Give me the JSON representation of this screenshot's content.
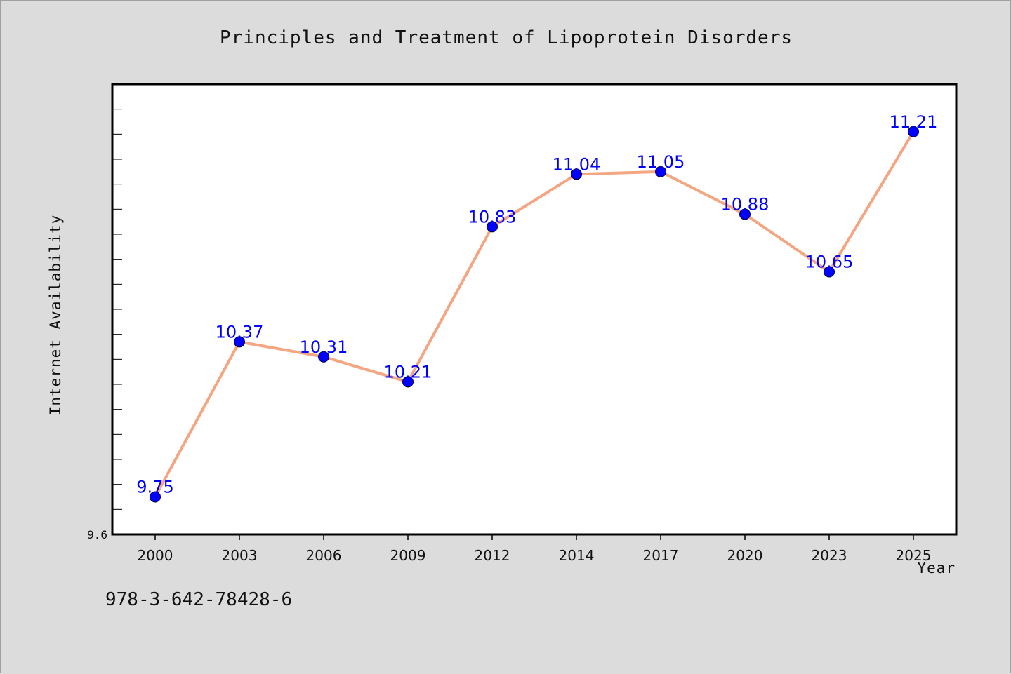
{
  "colors": {
    "background": "#dcdcdc",
    "plot_background": "#ffffff",
    "line": "#f4a582",
    "marker": "#0000ff",
    "data_label": "#0000ff"
  },
  "isbn": "978-3-642-78428-6",
  "chart_data": {
    "type": "line",
    "title": "Principles and Treatment of Lipoprotein Disorders",
    "xlabel": "Year",
    "ylabel": "Internet Availability",
    "categories": [
      "2000",
      "2003",
      "2006",
      "2009",
      "2012",
      "2014",
      "2017",
      "2020",
      "2023",
      "2025"
    ],
    "values": [
      9.75,
      10.37,
      10.31,
      10.21,
      10.83,
      11.04,
      11.05,
      10.88,
      10.65,
      11.21
    ],
    "data_labels": [
      "9.75",
      "10.37",
      "10.31",
      "10.21",
      "10.83",
      "11.04",
      "11.05",
      "10.88",
      "10.65",
      "11.21"
    ],
    "ylim": [
      9.6,
      11.4
    ],
    "y_tick_labels": [
      "9.6"
    ],
    "grid": false,
    "legend": false
  }
}
